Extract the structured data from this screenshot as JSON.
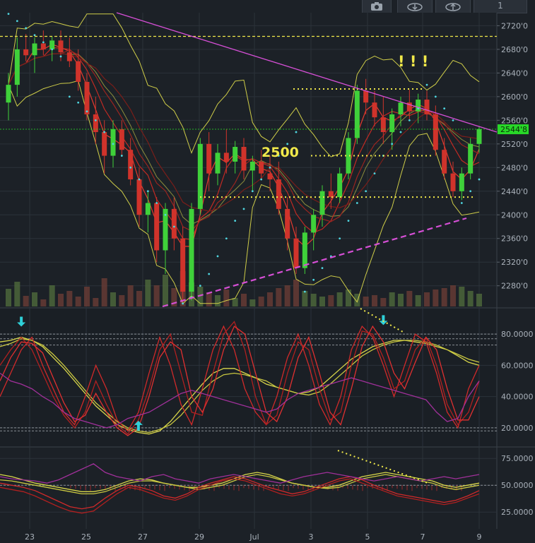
{
  "toolbar": {
    "buttons": [
      {
        "name": "screenshot-button",
        "icon": "camera-icon",
        "label": ""
      },
      {
        "name": "cloud-load-button",
        "icon": "cloud-download-icon",
        "label": ""
      },
      {
        "name": "cloud-save-button",
        "icon": "cloud-upload-icon",
        "label": ""
      },
      {
        "name": "interval-button",
        "icon": "",
        "label": "1"
      }
    ]
  },
  "colors": {
    "background": "#1c2127",
    "grid": "#2b323a",
    "up_candle": "#3fd13a",
    "down_candle": "#d0332b",
    "bollinger": "#d8d64a",
    "sar_dots": "#4fd6e0",
    "trend_magenta": "#d64fd6",
    "yellow_dashed": "#f1e94a",
    "volume": "#6b5a3a",
    "price_tag": "#28d828",
    "arrow_cyan": "#2fd0d8"
  },
  "annotations": {
    "level_text": "2500",
    "exclaim_text": "! ! !"
  },
  "chart_data": [
    {
      "type": "candlestick",
      "ylim": [
        2245,
        2742
      ],
      "price_axis_ticks": [
        "2720'0",
        "2680'0",
        "2640'0",
        "2600'0",
        "2560'0",
        "2520'0",
        "2480'0",
        "2440'0",
        "2400'0",
        "2360'0",
        "2320'0",
        "2280'0"
      ],
      "price_axis_values": [
        2720,
        2680,
        2640,
        2600,
        2560,
        2520,
        2480,
        2440,
        2400,
        2360,
        2320,
        2280
      ],
      "x_axis_labels": [
        "23",
        "25",
        "27",
        "29",
        "Jul",
        "3",
        "5",
        "7",
        "9"
      ],
      "last_price_label": "2544'8",
      "last_price": 2544.8,
      "horizontal_levels": [
        2702,
        2613,
        2500,
        2430
      ],
      "candles": [
        {
          "o": 2590,
          "h": 2640,
          "l": 2560,
          "c": 2620
        },
        {
          "o": 2620,
          "h": 2700,
          "l": 2600,
          "c": 2680
        },
        {
          "o": 2680,
          "h": 2706,
          "l": 2660,
          "c": 2670
        },
        {
          "o": 2670,
          "h": 2700,
          "l": 2640,
          "c": 2690
        },
        {
          "o": 2690,
          "h": 2712,
          "l": 2670,
          "c": 2680
        },
        {
          "o": 2680,
          "h": 2702,
          "l": 2660,
          "c": 2695
        },
        {
          "o": 2695,
          "h": 2712,
          "l": 2660,
          "c": 2675
        },
        {
          "o": 2675,
          "h": 2700,
          "l": 2650,
          "c": 2660
        },
        {
          "o": 2660,
          "h": 2680,
          "l": 2610,
          "c": 2625
        },
        {
          "o": 2625,
          "h": 2640,
          "l": 2560,
          "c": 2570
        },
        {
          "o": 2570,
          "h": 2600,
          "l": 2520,
          "c": 2540
        },
        {
          "o": 2540,
          "h": 2560,
          "l": 2470,
          "c": 2500
        },
        {
          "o": 2500,
          "h": 2560,
          "l": 2480,
          "c": 2545
        },
        {
          "o": 2545,
          "h": 2560,
          "l": 2500,
          "c": 2510
        },
        {
          "o": 2510,
          "h": 2530,
          "l": 2450,
          "c": 2460
        },
        {
          "o": 2460,
          "h": 2480,
          "l": 2380,
          "c": 2400
        },
        {
          "o": 2400,
          "h": 2440,
          "l": 2370,
          "c": 2420
        },
        {
          "o": 2420,
          "h": 2430,
          "l": 2320,
          "c": 2340
        },
        {
          "o": 2340,
          "h": 2420,
          "l": 2300,
          "c": 2410
        },
        {
          "o": 2410,
          "h": 2430,
          "l": 2340,
          "c": 2360
        },
        {
          "o": 2360,
          "h": 2380,
          "l": 2250,
          "c": 2270
        },
        {
          "o": 2270,
          "h": 2420,
          "l": 2255,
          "c": 2410
        },
        {
          "o": 2410,
          "h": 2530,
          "l": 2400,
          "c": 2520
        },
        {
          "o": 2520,
          "h": 2540,
          "l": 2440,
          "c": 2470
        },
        {
          "o": 2470,
          "h": 2520,
          "l": 2450,
          "c": 2505
        },
        {
          "o": 2505,
          "h": 2545,
          "l": 2470,
          "c": 2490
        },
        {
          "o": 2490,
          "h": 2525,
          "l": 2470,
          "c": 2515
        },
        {
          "o": 2515,
          "h": 2530,
          "l": 2460,
          "c": 2475
        },
        {
          "o": 2475,
          "h": 2500,
          "l": 2440,
          "c": 2490
        },
        {
          "o": 2490,
          "h": 2510,
          "l": 2460,
          "c": 2470
        },
        {
          "o": 2470,
          "h": 2500,
          "l": 2440,
          "c": 2460
        },
        {
          "o": 2460,
          "h": 2490,
          "l": 2400,
          "c": 2410
        },
        {
          "o": 2410,
          "h": 2430,
          "l": 2340,
          "c": 2360
        },
        {
          "o": 2360,
          "h": 2380,
          "l": 2300,
          "c": 2310
        },
        {
          "o": 2310,
          "h": 2380,
          "l": 2300,
          "c": 2370
        },
        {
          "o": 2370,
          "h": 2410,
          "l": 2340,
          "c": 2400
        },
        {
          "o": 2400,
          "h": 2450,
          "l": 2380,
          "c": 2440
        },
        {
          "o": 2440,
          "h": 2470,
          "l": 2410,
          "c": 2430
        },
        {
          "o": 2430,
          "h": 2480,
          "l": 2420,
          "c": 2470
        },
        {
          "o": 2470,
          "h": 2540,
          "l": 2460,
          "c": 2530
        },
        {
          "o": 2530,
          "h": 2620,
          "l": 2520,
          "c": 2610
        },
        {
          "o": 2610,
          "h": 2630,
          "l": 2570,
          "c": 2590
        },
        {
          "o": 2590,
          "h": 2610,
          "l": 2550,
          "c": 2565
        },
        {
          "o": 2565,
          "h": 2600,
          "l": 2520,
          "c": 2540
        },
        {
          "o": 2540,
          "h": 2580,
          "l": 2510,
          "c": 2570
        },
        {
          "o": 2570,
          "h": 2600,
          "l": 2550,
          "c": 2590
        },
        {
          "o": 2590,
          "h": 2612,
          "l": 2560,
          "c": 2575
        },
        {
          "o": 2575,
          "h": 2605,
          "l": 2555,
          "c": 2595
        },
        {
          "o": 2595,
          "h": 2610,
          "l": 2560,
          "c": 2570
        },
        {
          "o": 2570,
          "h": 2585,
          "l": 2500,
          "c": 2510
        },
        {
          "o": 2510,
          "h": 2530,
          "l": 2460,
          "c": 2470
        },
        {
          "o": 2470,
          "h": 2490,
          "l": 2430,
          "c": 2440
        },
        {
          "o": 2440,
          "h": 2480,
          "l": 2425,
          "c": 2470
        },
        {
          "o": 2470,
          "h": 2530,
          "l": 2460,
          "c": 2520
        },
        {
          "o": 2520,
          "h": 2550,
          "l": 2505,
          "c": 2545
        }
      ],
      "volume": [
        25,
        35,
        15,
        20,
        10,
        30,
        18,
        22,
        14,
        28,
        12,
        40,
        20,
        16,
        30,
        22,
        38,
        30,
        45,
        26,
        50,
        34,
        28,
        20,
        16,
        24,
        12,
        18,
        10,
        14,
        20,
        26,
        30,
        38,
        22,
        18,
        14,
        16,
        20,
        24,
        18,
        14,
        16,
        12,
        20,
        18,
        22,
        16,
        20,
        24,
        26,
        30,
        28,
        22,
        18
      ],
      "sar_dots": [
        2740,
        2728,
        2716,
        2704,
        2692,
        2680,
        2668,
        2600,
        2590,
        2575,
        2560,
        2540,
        2520,
        2500,
        2480,
        2460,
        2440,
        2420,
        2400,
        2380,
        2250,
        2260,
        2280,
        2300,
        2330,
        2360,
        2390,
        2410,
        2440,
        2460,
        2480,
        2500,
        2520,
        2540,
        2270,
        2290,
        2310,
        2330,
        2360,
        2390,
        2420,
        2440,
        2470,
        2500,
        2520,
        2540,
        2560,
        2580,
        2620,
        2600,
        2580,
        2560,
        2420,
        2440,
        2460
      ]
    },
    {
      "type": "line",
      "title": "",
      "ylim": [
        10,
        95
      ],
      "y_axis_ticks": [
        "80.0000",
        "60.0000",
        "40.0000",
        "20.0000"
      ],
      "y_axis_values": [
        80,
        60,
        40,
        20
      ],
      "levels": [
        80,
        77,
        73,
        20,
        18
      ],
      "series": [
        {
          "color": "#d8d64a",
          "values": [
            75,
            76,
            78,
            76,
            72,
            65,
            58,
            50,
            42,
            34,
            28,
            22,
            19,
            17,
            16,
            18,
            24,
            32,
            40,
            48,
            55,
            58,
            58,
            55,
            52,
            48,
            46,
            44,
            42,
            43,
            46,
            52,
            58,
            64,
            68,
            72,
            74,
            76,
            76,
            75,
            74,
            72,
            70,
            66,
            62,
            60
          ]
        },
        {
          "color": "#c8c640",
          "values": [
            72,
            74,
            77,
            76,
            73,
            67,
            60,
            52,
            44,
            36,
            30,
            24,
            20,
            18,
            17,
            19,
            22,
            28,
            36,
            44,
            50,
            54,
            55,
            54,
            52,
            50,
            46,
            44,
            42,
            41,
            43,
            48,
            54,
            60,
            66,
            70,
            73,
            75,
            76,
            76,
            75,
            73,
            70,
            67,
            64,
            62
          ]
        },
        {
          "color": "#d02a2a",
          "values": [
            40,
            55,
            70,
            78,
            60,
            45,
            30,
            22,
            40,
            60,
            45,
            25,
            18,
            30,
            55,
            78,
            60,
            35,
            22,
            45,
            70,
            85,
            70,
            45,
            30,
            22,
            40,
            65,
            80,
            60,
            35,
            22,
            40,
            70,
            85,
            78,
            60,
            40,
            60,
            80,
            75,
            55,
            30,
            20,
            45,
            60
          ]
        },
        {
          "color": "#b02020",
          "values": [
            60,
            70,
            78,
            70,
            55,
            40,
            28,
            20,
            30,
            50,
            35,
            22,
            16,
            25,
            45,
            70,
            80,
            55,
            30,
            28,
            55,
            80,
            88,
            70,
            40,
            22,
            28,
            55,
            75,
            70,
            45,
            25,
            30,
            60,
            82,
            80,
            65,
            45,
            50,
            70,
            78,
            60,
            35,
            22,
            30,
            50
          ]
        },
        {
          "color": "#e03030",
          "values": [
            50,
            65,
            75,
            74,
            68,
            52,
            36,
            24,
            28,
            42,
            30,
            20,
            15,
            20,
            40,
            65,
            75,
            70,
            40,
            30,
            45,
            70,
            85,
            80,
            55,
            30,
            24,
            40,
            65,
            78,
            55,
            30,
            22,
            45,
            72,
            85,
            75,
            55,
            45,
            62,
            78,
            70,
            45,
            25,
            25,
            40
          ]
        },
        {
          "color": "#a0309a",
          "values": [
            55,
            50,
            48,
            45,
            40,
            36,
            30,
            26,
            24,
            22,
            20,
            22,
            26,
            28,
            30,
            34,
            38,
            42,
            44,
            42,
            40,
            38,
            36,
            34,
            32,
            30,
            32,
            38,
            42,
            44,
            46,
            48,
            50,
            52,
            50,
            48,
            46,
            44,
            42,
            40,
            38,
            30,
            24,
            26,
            40,
            50
          ]
        }
      ],
      "markers": [
        {
          "type": "down-arrow",
          "index": 2,
          "value": 83
        },
        {
          "type": "up-arrow",
          "index": 13,
          "value": 20
        },
        {
          "type": "down-arrow",
          "index": 36,
          "value": 84
        }
      ]
    },
    {
      "type": "line",
      "title": "",
      "ylim": [
        10,
        85
      ],
      "y_axis_ticks": [
        "75.0000",
        "50.0000",
        "25.0000"
      ],
      "y_axis_values": [
        75,
        50,
        25
      ],
      "levels": [
        50
      ],
      "series": [
        {
          "color": "#d8d64a",
          "values": [
            60,
            58,
            55,
            52,
            50,
            48,
            46,
            44,
            44,
            46,
            50,
            54,
            56,
            55,
            52,
            50,
            48,
            48,
            50,
            52,
            56,
            60,
            62,
            60,
            56,
            52,
            50,
            48,
            48,
            50,
            54,
            58,
            60,
            62,
            60,
            58,
            56,
            54,
            50,
            48,
            50,
            52
          ]
        },
        {
          "color": "#c8c640",
          "values": [
            55,
            54,
            52,
            50,
            48,
            46,
            44,
            42,
            42,
            44,
            48,
            52,
            54,
            54,
            52,
            50,
            48,
            46,
            48,
            50,
            54,
            58,
            60,
            58,
            55,
            52,
            50,
            48,
            47,
            48,
            52,
            56,
            58,
            60,
            58,
            56,
            54,
            52,
            48,
            46,
            48,
            50
          ]
        },
        {
          "color": "#d02a2a",
          "values": [
            52,
            50,
            48,
            45,
            40,
            35,
            30,
            28,
            30,
            38,
            45,
            50,
            48,
            45,
            40,
            38,
            42,
            48,
            52,
            55,
            58,
            56,
            52,
            48,
            45,
            42,
            44,
            48,
            52,
            56,
            58,
            55,
            50,
            46,
            42,
            40,
            38,
            36,
            34,
            36,
            40,
            45
          ]
        },
        {
          "color": "#b02020",
          "values": [
            48,
            46,
            44,
            40,
            35,
            30,
            26,
            24,
            26,
            34,
            42,
            48,
            46,
            42,
            38,
            36,
            40,
            46,
            50,
            54,
            56,
            54,
            50,
            46,
            42,
            40,
            42,
            46,
            50,
            54,
            56,
            52,
            48,
            44,
            40,
            38,
            36,
            34,
            32,
            34,
            38,
            42
          ]
        },
        {
          "color": "#a0309a",
          "values": [
            58,
            56,
            55,
            54,
            52,
            55,
            60,
            65,
            70,
            62,
            58,
            56,
            54,
            58,
            60,
            56,
            54,
            52,
            56,
            58,
            60,
            58,
            56,
            54,
            52,
            55,
            58,
            60,
            62,
            60,
            58,
            56,
            54,
            56,
            58,
            56,
            54,
            56,
            58,
            56,
            58,
            60
          ]
        }
      ]
    }
  ]
}
